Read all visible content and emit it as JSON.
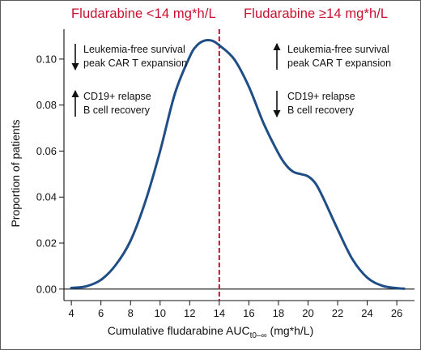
{
  "header": {
    "left_label": "Fludarabine <14 mg*h/L",
    "right_label": "Fludarabine ≥14 mg*h/L"
  },
  "annotations": {
    "left": [
      {
        "direction": "down",
        "lines": [
          "Leukemia-free survival",
          "peak CAR T expansion"
        ]
      },
      {
        "direction": "up",
        "lines": [
          "CD19+ relapse",
          "B cell recovery"
        ]
      }
    ],
    "right": [
      {
        "direction": "up",
        "lines": [
          "Leukemia-free survival",
          "peak CAR T expansion"
        ]
      },
      {
        "direction": "down",
        "lines": [
          "CD19+ relapse",
          "B cell recovery"
        ]
      }
    ]
  },
  "colors": {
    "curve": "#1f4e86",
    "threshold": "#c8102e",
    "header_text": "#c8102e"
  },
  "chart_data": {
    "type": "line",
    "xlabel_main": "Cumulative fludarabine AUC",
    "xlabel_sub": "t0–∞",
    "xlabel_unit": " (mg*h/L)",
    "ylabel": "Proportion of patients",
    "xlim": [
      3.5,
      27.2
    ],
    "ylim": [
      -0.005,
      0.113
    ],
    "x_ticks": [
      4,
      6,
      8,
      10,
      12,
      14,
      16,
      18,
      20,
      22,
      24,
      26
    ],
    "y_ticks": [
      0.0,
      0.02,
      0.04,
      0.06,
      0.08,
      0.1
    ],
    "y_tick_labels": [
      "0.00",
      "0.02",
      "0.04",
      "0.06",
      "0.08",
      "0.10"
    ],
    "threshold_x": 14,
    "grid": false,
    "series": [
      {
        "x": [
          4.0,
          5.0,
          6.0,
          7.0,
          8.0,
          9.0,
          10.0,
          11.0,
          12.0,
          12.5,
          13.0,
          13.5,
          14.0,
          15.0,
          16.0,
          17.0,
          18.0,
          18.5,
          19.0,
          19.5,
          20.0,
          20.5,
          21.0,
          22.0,
          23.0,
          24.0,
          25.0,
          26.0,
          26.5
        ],
        "y": [
          0.0005,
          0.0012,
          0.004,
          0.0105,
          0.021,
          0.038,
          0.06,
          0.085,
          0.101,
          0.106,
          0.108,
          0.108,
          0.106,
          0.1,
          0.088,
          0.072,
          0.059,
          0.054,
          0.051,
          0.05,
          0.049,
          0.046,
          0.04,
          0.026,
          0.013,
          0.005,
          0.0015,
          0.0004,
          0.0002
        ]
      }
    ]
  }
}
